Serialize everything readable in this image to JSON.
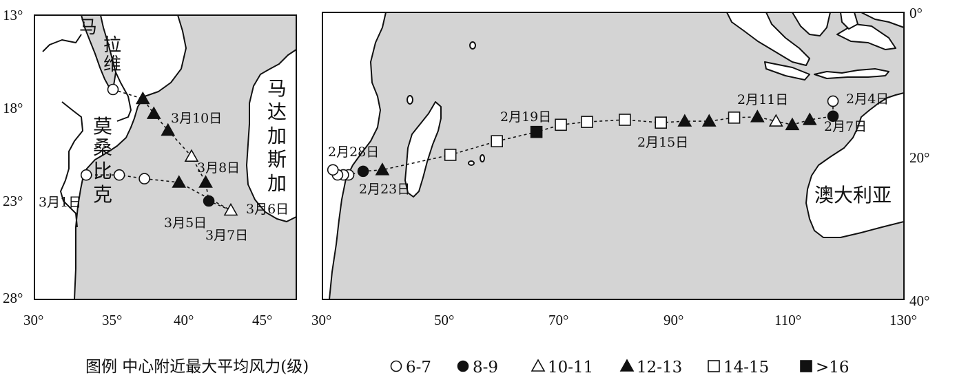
{
  "left_map": {
    "lat_ticks": [
      "13°",
      "18°",
      "23°",
      "28°"
    ],
    "lon_ticks": [
      "30°",
      "35°",
      "40°",
      "45°"
    ],
    "land_labels": [
      {
        "text": "马",
        "role": "malawi"
      },
      {
        "text": "拉",
        "role": "malawi"
      },
      {
        "text": "维",
        "role": "malawi"
      },
      {
        "text": "莫",
        "role": "mozambique"
      },
      {
        "text": "桑",
        "role": "mozambique"
      },
      {
        "text": "比",
        "role": "mozambique"
      },
      {
        "text": "克",
        "role": "mozambique"
      },
      {
        "text": "马",
        "role": "madagascar"
      },
      {
        "text": "达",
        "role": "madagascar"
      },
      {
        "text": "加",
        "role": "madagascar"
      },
      {
        "text": "斯",
        "role": "madagascar"
      },
      {
        "text": "加",
        "role": "madagascar"
      }
    ],
    "date_labels": [
      "3月10日",
      "3月8日",
      "3月1日",
      "3月5日",
      "3月6日",
      "3月7日"
    ],
    "track_points": [
      {
        "lon": 35.0,
        "lat": 17.0,
        "wind": "6-7"
      },
      {
        "lon": 36.9,
        "lat": 17.5,
        "wind": "12-13"
      },
      {
        "lon": 37.6,
        "lat": 18.3,
        "wind": "12-13"
      },
      {
        "lon": 38.5,
        "lat": 19.2,
        "wind": "12-13"
      },
      {
        "lon": 40.0,
        "lat": 20.6,
        "wind": "10-11"
      },
      {
        "lon": 40.9,
        "lat": 22.0,
        "wind": "12-13"
      },
      {
        "lon": 41.1,
        "lat": 23.0,
        "wind": "8-9"
      },
      {
        "lon": 42.5,
        "lat": 23.5,
        "wind": "10-11"
      },
      {
        "lon": 39.2,
        "lat": 22.0,
        "wind": "12-13"
      },
      {
        "lon": 37.0,
        "lat": 21.8,
        "wind": "6-7"
      },
      {
        "lon": 35.4,
        "lat": 21.6,
        "wind": "6-7"
      },
      {
        "lon": 33.3,
        "lat": 21.6,
        "wind": "6-7"
      }
    ]
  },
  "right_map": {
    "lat_ticks": [
      "0°",
      "20°",
      "40°"
    ],
    "lon_ticks": [
      "30°",
      "50°",
      "70°",
      "90°",
      "110°",
      "130°"
    ],
    "land_labels": [
      {
        "text": "澳大利亚",
        "role": "australia"
      }
    ],
    "date_labels": [
      "2月4日",
      "2月7日",
      "2月11日",
      "2月15日",
      "2月19日",
      "2月28日",
      "2月23日"
    ],
    "track_points": [
      {
        "lon": 117.8,
        "lat": 12.4,
        "wind": "6-7"
      },
      {
        "lon": 117.8,
        "lat": 14.5,
        "wind": "8-9"
      },
      {
        "lon": 113.8,
        "lat": 15.0,
        "wind": "12-13"
      },
      {
        "lon": 110.8,
        "lat": 15.7,
        "wind": "12-13"
      },
      {
        "lon": 108.0,
        "lat": 15.2,
        "wind": "10-11"
      },
      {
        "lon": 104.8,
        "lat": 14.6,
        "wind": "12-13"
      },
      {
        "lon": 100.8,
        "lat": 14.7,
        "wind": "14-15"
      },
      {
        "lon": 96.5,
        "lat": 15.2,
        "wind": "12-13"
      },
      {
        "lon": 92.3,
        "lat": 15.2,
        "wind": "12-13"
      },
      {
        "lon": 88.2,
        "lat": 15.4,
        "wind": "14-15"
      },
      {
        "lon": 82.0,
        "lat": 15.0,
        "wind": "14-15"
      },
      {
        "lon": 75.5,
        "lat": 15.3,
        "wind": "14-15"
      },
      {
        "lon": 71.0,
        "lat": 15.7,
        "wind": "14-15"
      },
      {
        "lon": 66.8,
        "lat": 16.7,
        "wind": ">16"
      },
      {
        "lon": 60.0,
        "lat": 18.0,
        "wind": "14-15"
      },
      {
        "lon": 52.0,
        "lat": 19.9,
        "wind": "14-15"
      },
      {
        "lon": 40.3,
        "lat": 22.0,
        "wind": "12-13"
      },
      {
        "lon": 37.0,
        "lat": 22.2,
        "wind": "8-9"
      },
      {
        "lon": 34.5,
        "lat": 22.7,
        "wind": "6-7"
      },
      {
        "lon": 33.6,
        "lat": 22.7,
        "wind": "6-7"
      },
      {
        "lon": 32.6,
        "lat": 22.7,
        "wind": "6-7"
      },
      {
        "lon": 31.8,
        "lat": 22.0,
        "wind": "6-7"
      }
    ]
  },
  "legend": {
    "title": "图例 中心附近最大平均风力(级)",
    "items": [
      {
        "symbol": "open-circle",
        "label": "6-7"
      },
      {
        "symbol": "filled-circle",
        "label": "8-9"
      },
      {
        "symbol": "open-triangle",
        "label": "10-11"
      },
      {
        "symbol": "filled-triangle",
        "label": "12-13"
      },
      {
        "symbol": "open-square",
        "label": "14-15"
      },
      {
        "symbol": "filled-square",
        "label": ">16"
      }
    ]
  },
  "colors": {
    "sea": "#d4d4d4",
    "land": "#ffffff",
    "line": "#111111"
  }
}
